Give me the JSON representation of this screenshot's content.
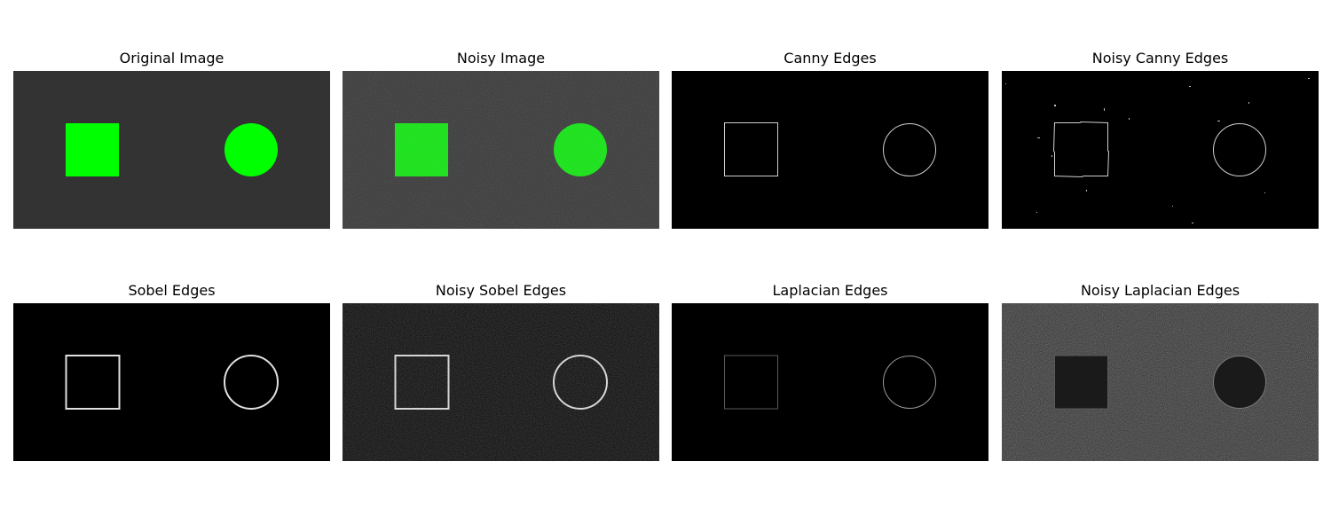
{
  "figure": {
    "panels": [
      {
        "title": "Original Image",
        "variant": "original"
      },
      {
        "title": "Noisy Image",
        "variant": "noisy"
      },
      {
        "title": "Canny Edges",
        "variant": "canny"
      },
      {
        "title": "Noisy Canny Edges",
        "variant": "noisy-canny"
      },
      {
        "title": "Sobel Edges",
        "variant": "sobel"
      },
      {
        "title": "Noisy Sobel Edges",
        "variant": "noisy-sobel"
      },
      {
        "title": "Laplacian Edges",
        "variant": "laplacian"
      },
      {
        "title": "Noisy Laplacian Edges",
        "variant": "noisy-laplacian"
      }
    ],
    "colors": {
      "original_background": "#333333",
      "shape_fill": "#00ff00",
      "edge_background": "#000000",
      "edge_stroke": "#d0d0d0"
    }
  }
}
